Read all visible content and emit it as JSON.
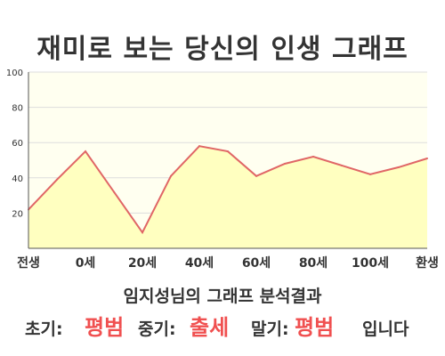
{
  "title": "재미로 보는 당신의 인생 그래프",
  "colors": {
    "line": "#e06666",
    "fill": "#ffffc0",
    "plot_bg": "#fffff0",
    "grid": "#dddddd",
    "accent": "#f05050"
  },
  "chart_data": {
    "type": "area",
    "x": [
      "전생",
      "",
      "0세",
      "",
      "20세",
      "",
      "40세",
      "",
      "60세",
      "",
      "80세",
      "",
      "100세",
      "",
      "환생"
    ],
    "x_tick_labels": [
      "전생",
      "0세",
      "20세",
      "40세",
      "60세",
      "80세",
      "100세",
      "환생"
    ],
    "series": [
      {
        "values": [
          22,
          39,
          55,
          32,
          9,
          41,
          58,
          55,
          41,
          48,
          52,
          47,
          42,
          46,
          51
        ]
      }
    ],
    "ylim": [
      0,
      100
    ],
    "y_ticks": [
      20,
      40,
      60,
      80,
      100
    ],
    "grid": true,
    "legend": false
  },
  "summary": {
    "label": "임지성님의 그래프 분석결과",
    "early_label": "초기:",
    "early_value": "평범",
    "middle_label": "중기:",
    "middle_value": "출세",
    "late_label": "말기:",
    "late_value": "평범",
    "suffix": "입니다"
  }
}
